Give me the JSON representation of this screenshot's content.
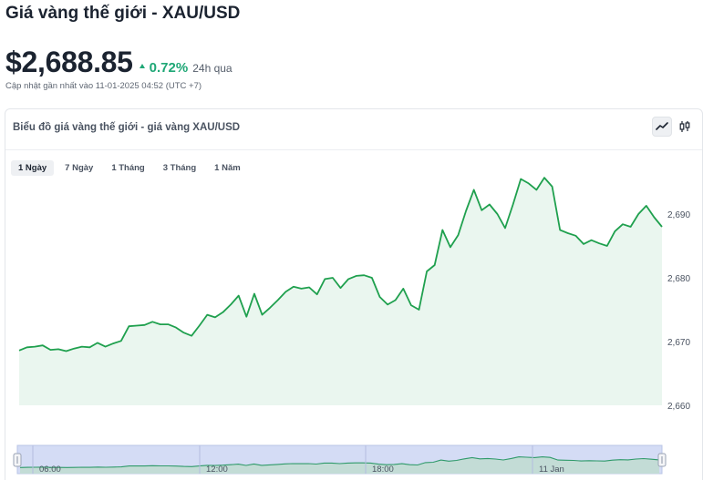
{
  "header": {
    "title": "Giá vàng thế giới - XAU/USD",
    "price": "$2,688.85",
    "change_pct": "0.72%",
    "change_period": "24h qua",
    "updated": "Cập nhật gần nhất vào 11-01-2025 04:52 (UTC +7)"
  },
  "card": {
    "title": "Biểu đồ giá vàng thế giới - giá vàng XAU/USD",
    "chart_type_buttons": [
      {
        "name": "line-chart-icon",
        "active": true
      },
      {
        "name": "candlestick-icon",
        "active": false
      }
    ],
    "range_tabs": [
      {
        "label": "1 Ngày",
        "active": true
      },
      {
        "label": "7 Ngày",
        "active": false
      },
      {
        "label": "1 Tháng",
        "active": false
      },
      {
        "label": "3 Tháng",
        "active": false
      },
      {
        "label": "1 Năm",
        "active": false
      }
    ]
  },
  "colors": {
    "line": "#1fa04e",
    "area": "#eaf6ef",
    "up": "#1fa776",
    "navigator_bg": "#d4dcf5",
    "navigator_line": "#2f9a6a"
  },
  "chart_data": {
    "type": "area",
    "title": "",
    "xlabel": "",
    "ylabel": "",
    "ylim": [
      2660,
      2697
    ],
    "y_ticks": [
      2660,
      2670,
      2680,
      2690
    ],
    "navigator_labels": [
      "06:00",
      "12:00",
      "18:00",
      "11 Jan"
    ],
    "series": [
      {
        "values": [
          2668.6,
          2669.1,
          2669.2,
          2669.4,
          2668.7,
          2668.8,
          2668.5,
          2668.9,
          2669.2,
          2669.1,
          2669.8,
          2669.2,
          2669.7,
          2670.1,
          2672.4,
          2672.5,
          2672.6,
          2673.1,
          2672.7,
          2672.7,
          2672.2,
          2671.4,
          2670.9,
          2672.5,
          2674.2,
          2673.8,
          2674.6,
          2675.8,
          2677.2,
          2673.9,
          2677.5,
          2674.2,
          2675.3,
          2676.5,
          2677.8,
          2678.6,
          2678.3,
          2678.5,
          2677.4,
          2679.8,
          2680.0,
          2678.4,
          2679.8,
          2680.3,
          2680.4,
          2680.0,
          2677.0,
          2675.8,
          2676.5,
          2678.3,
          2675.7,
          2675.0,
          2681.0,
          2682.0,
          2687.5,
          2684.8,
          2686.7,
          2690.5,
          2693.8,
          2690.6,
          2691.5,
          2690.0,
          2687.8,
          2691.5,
          2695.5,
          2694.8,
          2693.8,
          2695.7,
          2694.3,
          2687.5,
          2687.0,
          2686.6,
          2685.3,
          2685.9,
          2685.4,
          2685.0,
          2687.3,
          2688.4,
          2688.0,
          2690.0,
          2691.3,
          2689.5,
          2688.0
        ]
      }
    ]
  }
}
